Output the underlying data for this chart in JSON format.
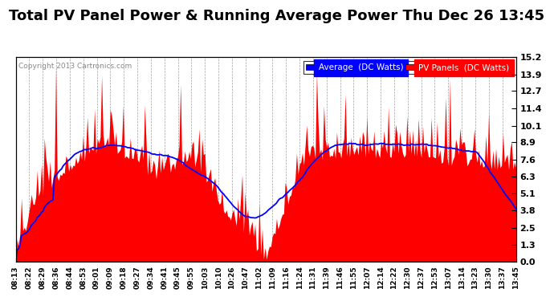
{
  "title": "Total PV Panel Power & Running Average Power Thu Dec 26 13:45",
  "copyright": "Copyright 2013 Cartronics.com",
  "yticks": [
    0.0,
    1.3,
    2.5,
    3.8,
    5.1,
    6.3,
    7.6,
    8.9,
    10.1,
    11.4,
    12.7,
    13.9,
    15.2
  ],
  "ymin": 0.0,
  "ymax": 15.2,
  "bar_color": "#FF0000",
  "line_color": "#0000FF",
  "bg_color": "#FFFFFF",
  "title_fontsize": 13,
  "legend_avg_label": "Average  (DC Watts)",
  "legend_pv_label": "PV Panels  (DC Watts)",
  "x_tick_labels": [
    "08:13",
    "08:22",
    "08:29",
    "08:36",
    "08:44",
    "08:53",
    "09:01",
    "09:09",
    "09:18",
    "09:27",
    "09:34",
    "09:41",
    "09:45",
    "09:55",
    "10:03",
    "10:10",
    "10:26",
    "10:47",
    "11:02",
    "11:09",
    "11:16",
    "11:24",
    "11:31",
    "11:39",
    "11:46",
    "11:55",
    "12:07",
    "12:14",
    "12:22",
    "12:30",
    "12:37",
    "12:53",
    "13:07",
    "13:14",
    "13:23",
    "13:30",
    "13:37",
    "13:45"
  ]
}
